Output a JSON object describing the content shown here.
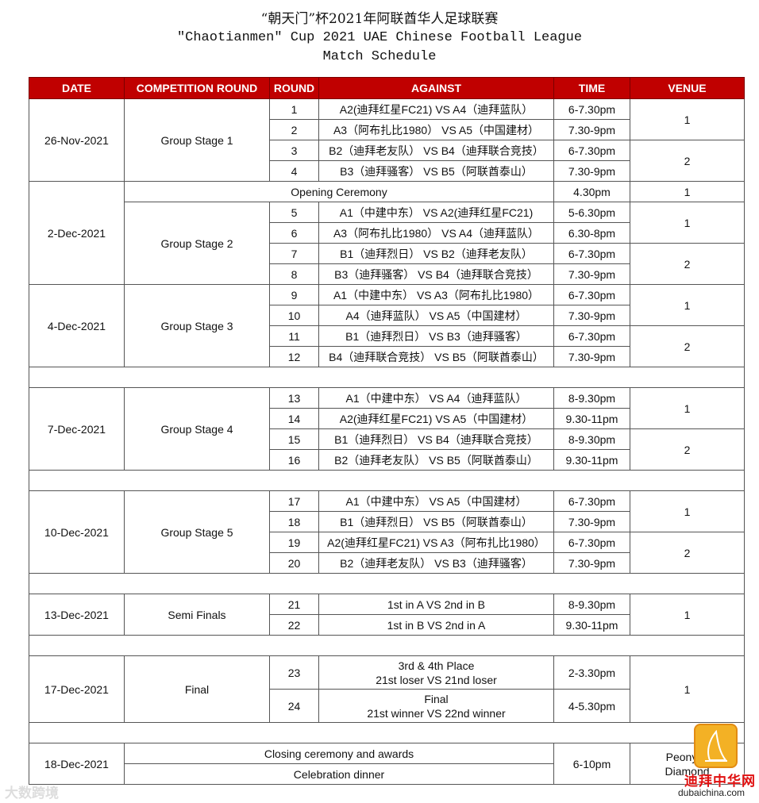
{
  "title": {
    "zh": "“朝天门”杯2021年阿联酋华人足球联赛",
    "en": "\"Chaotianmen\" Cup 2021 UAE Chinese Football League",
    "sub": "Match Schedule"
  },
  "header": [
    "DATE",
    "COMPETITION ROUND",
    "ROUND",
    "AGAINST",
    "TIME",
    "VENUE"
  ],
  "colors": {
    "header_bg": "#c00000",
    "header_text": "#ffffff"
  },
  "blocks": [
    {
      "date": "26-Nov-2021",
      "round": "Group Stage 1",
      "rows": [
        {
          "no": "1",
          "against": "A2(迪拜红星FC21) VS A4（迪拜蓝队）",
          "time": "6-7.30pm",
          "venue": "1"
        },
        {
          "no": "2",
          "against": "A3（阿布扎比1980） VS A5（中国建材）",
          "time": "7.30-9pm",
          "venue": "1"
        },
        {
          "no": "3",
          "against": "B2（迪拜老友队） VS B4（迪拜联合竞技）",
          "time": "6-7.30pm",
          "venue": "2"
        },
        {
          "no": "4",
          "against": "B3（迪拜骚客） VS B5（阿联酋泰山）",
          "time": "7.30-9pm",
          "venue": "2"
        }
      ]
    },
    {
      "date": "2-Dec-2021",
      "round": "Group Stage 2",
      "rows": [
        {
          "event": "Opening Ceremony",
          "time": "4.30pm",
          "venue": "1"
        },
        {
          "no": "5",
          "against": "A1（中建中东） VS A2(迪拜红星FC21)",
          "time": "5-6.30pm",
          "venue": "1"
        },
        {
          "no": "6",
          "against": "A3（阿布扎比1980） VS A4（迪拜蓝队）",
          "time": "6.30-8pm",
          "venue": "1"
        },
        {
          "no": "7",
          "against": "B1（迪拜烈日） VS B2（迪拜老友队）",
          "time": "6-7.30pm",
          "venue": "2"
        },
        {
          "no": "8",
          "against": "B3（迪拜骚客） VS B4（迪拜联合竞技）",
          "time": "7.30-9pm",
          "venue": "2"
        }
      ]
    },
    {
      "date": "4-Dec-2021",
      "round": "Group Stage 3",
      "rows": [
        {
          "no": "9",
          "against": "A1（中建中东） VS A3（阿布扎比1980）",
          "time": "6-7.30pm",
          "venue": "1"
        },
        {
          "no": "10",
          "against": "A4（迪拜蓝队） VS A5（中国建材）",
          "time": "7.30-9pm",
          "venue": "1"
        },
        {
          "no": "11",
          "against": "B1（迪拜烈日） VS B3（迪拜骚客）",
          "time": "6-7.30pm",
          "venue": "2"
        },
        {
          "no": "12",
          "against": "B4（迪拜联合竞技） VS B5（阿联酋泰山）",
          "time": "7.30-9pm",
          "venue": "2"
        }
      ]
    },
    {
      "spacer": true
    },
    {
      "date": "7-Dec-2021",
      "round": "Group Stage 4",
      "rows": [
        {
          "no": "13",
          "against": "A1（中建中东） VS A4（迪拜蓝队）",
          "time": "8-9.30pm",
          "venue": "1"
        },
        {
          "no": "14",
          "against": "A2(迪拜红星FC21) VS A5（中国建材）",
          "time": "9.30-11pm",
          "venue": "1"
        },
        {
          "no": "15",
          "against": "B1（迪拜烈日） VS B4（迪拜联合竞技）",
          "time": "8-9.30pm",
          "venue": "2"
        },
        {
          "no": "16",
          "against": "B2（迪拜老友队） VS B5（阿联酋泰山）",
          "time": "9.30-11pm",
          "venue": "2"
        }
      ]
    },
    {
      "spacer": true
    },
    {
      "date": "10-Dec-2021",
      "round": "Group Stage 5",
      "rows": [
        {
          "no": "17",
          "against": "A1（中建中东） VS A5（中国建材）",
          "time": "6-7.30pm",
          "venue": "1"
        },
        {
          "no": "18",
          "against": "B1（迪拜烈日） VS B5（阿联酋泰山）",
          "time": "7.30-9pm",
          "venue": "1"
        },
        {
          "no": "19",
          "against": "A2(迪拜红星FC21) VS A3（阿布扎比1980）",
          "time": "6-7.30pm",
          "venue": "2"
        },
        {
          "no": "20",
          "against": "B2（迪拜老友队） VS B3（迪拜骚客）",
          "time": "7.30-9pm",
          "venue": "2"
        }
      ]
    },
    {
      "spacer": true
    },
    {
      "date": "13-Dec-2021",
      "round": "Semi Finals",
      "rows": [
        {
          "no": "21",
          "against": "1st in A VS 2nd in B",
          "time": "8-9.30pm",
          "venue": "1"
        },
        {
          "no": "22",
          "against": "1st in B VS 2nd in A",
          "time": "9.30-11pm",
          "venue": "1"
        }
      ]
    },
    {
      "spacer": true
    },
    {
      "date": "17-Dec-2021",
      "round": "Final",
      "tall": true,
      "rows": [
        {
          "no": "23",
          "against": "3rd & 4th Place",
          "against2": "21st loser VS 21nd  loser",
          "time": "2-3.30pm",
          "venue": "1"
        },
        {
          "no": "24",
          "against": "Final",
          "against2": "21st winner VS 22nd winner",
          "time": "4-5.30pm",
          "venue": "1"
        }
      ]
    },
    {
      "spacer": true
    },
    {
      "date": "18-Dec-2021",
      "rows": [
        {
          "event": "Closing ceremony and awards",
          "time": "6-10pm",
          "venue": "Peony H",
          "venue2": "Diamond"
        },
        {
          "event": "Celebration dinner",
          "time": "6-10pm",
          "venue": "Peony H",
          "venue2": "Diamond"
        }
      ]
    }
  ],
  "watermarks": {
    "left": "大数跨境",
    "right_zh": "迪拜中华网",
    "right_en": "dubaichina.com"
  }
}
